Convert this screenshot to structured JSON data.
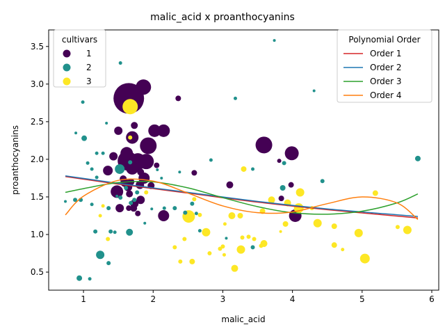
{
  "chart_data": {
    "type": "scatter",
    "title": "malic_acid x proanthocyanins",
    "xlabel": "malic_acid",
    "ylabel": "proanthocyanins",
    "xlim": [
      0.5,
      6.1
    ],
    "ylim": [
      0.26,
      3.72
    ],
    "xticks": [
      1,
      2,
      3,
      4,
      5,
      6
    ],
    "yticks": [
      0.5,
      1.0,
      1.5,
      2.0,
      2.5,
      3.0,
      3.5
    ],
    "grid": false,
    "legend_cultivars": {
      "title": "cultivars",
      "position": "upper-left",
      "entries": [
        {
          "label": "1",
          "color": "#440154"
        },
        {
          "label": "2",
          "color": "#21918c"
        },
        {
          "label": "3",
          "color": "#fde725"
        }
      ]
    },
    "legend_poly": {
      "title": "Polynomial Order",
      "position": "upper-right",
      "entries": [
        {
          "label": "Order 1",
          "color": "#d62728"
        },
        {
          "label": "Order 2",
          "color": "#1f77b4"
        },
        {
          "label": "Order 3",
          "color": "#2ca02c"
        },
        {
          "label": "Order 4",
          "color": "#ff7f0e"
        }
      ]
    },
    "series": [
      {
        "cultivar": "1",
        "color": "#440154",
        "points": [
          {
            "x": 1.65,
            "y": 2.81,
            "s": 22
          },
          {
            "x": 1.86,
            "y": 2.96,
            "s": 11
          },
          {
            "x": 1.93,
            "y": 2.18,
            "s": 12
          },
          {
            "x": 2.02,
            "y": 2.38,
            "s": 9
          },
          {
            "x": 2.15,
            "y": 2.38,
            "s": 9
          },
          {
            "x": 1.7,
            "y": 2.29,
            "s": 9
          },
          {
            "x": 1.73,
            "y": 2.45,
            "s": 5
          },
          {
            "x": 1.5,
            "y": 2.38,
            "s": 6
          },
          {
            "x": 2.36,
            "y": 2.81,
            "s": 4
          },
          {
            "x": 3.59,
            "y": 2.19,
            "s": 12
          },
          {
            "x": 3.99,
            "y": 2.08,
            "s": 10
          },
          {
            "x": 1.62,
            "y": 2.08,
            "s": 9
          },
          {
            "x": 1.63,
            "y": 1.98,
            "s": 14
          },
          {
            "x": 1.78,
            "y": 1.97,
            "s": 12
          },
          {
            "x": 1.9,
            "y": 1.97,
            "s": 11
          },
          {
            "x": 1.7,
            "y": 1.88,
            "s": 9
          },
          {
            "x": 1.35,
            "y": 1.85,
            "s": 7
          },
          {
            "x": 1.43,
            "y": 2.04,
            "s": 6
          },
          {
            "x": 1.82,
            "y": 1.83,
            "s": 5
          },
          {
            "x": 2.05,
            "y": 1.92,
            "s": 4
          },
          {
            "x": 1.48,
            "y": 1.57,
            "s": 9
          },
          {
            "x": 1.64,
            "y": 1.63,
            "s": 6
          },
          {
            "x": 1.87,
            "y": 1.75,
            "s": 8
          },
          {
            "x": 1.81,
            "y": 1.66,
            "s": 6
          },
          {
            "x": 1.59,
            "y": 1.69,
            "s": 6
          },
          {
            "x": 1.66,
            "y": 1.54,
            "s": 5
          },
          {
            "x": 1.73,
            "y": 1.41,
            "s": 6
          },
          {
            "x": 1.52,
            "y": 1.35,
            "s": 6
          },
          {
            "x": 1.82,
            "y": 1.46,
            "s": 6
          },
          {
            "x": 1.72,
            "y": 1.35,
            "s": 5
          },
          {
            "x": 1.65,
            "y": 1.35,
            "s": 4
          },
          {
            "x": 1.78,
            "y": 1.28,
            "s": 4
          },
          {
            "x": 2.15,
            "y": 1.25,
            "s": 8
          },
          {
            "x": 2.59,
            "y": 1.82,
            "s": 4
          },
          {
            "x": 3.1,
            "y": 1.66,
            "s": 5
          },
          {
            "x": 4.04,
            "y": 1.25,
            "s": 9
          },
          {
            "x": 3.84,
            "y": 1.48,
            "s": 4
          },
          {
            "x": 3.98,
            "y": 1.66,
            "s": 4
          },
          {
            "x": 3.81,
            "y": 1.98,
            "s": 3
          },
          {
            "x": 1.97,
            "y": 1.65,
            "s": 5
          },
          {
            "x": 1.57,
            "y": 1.74,
            "s": 5
          },
          {
            "x": 1.68,
            "y": 1.7,
            "s": 5
          }
        ]
      },
      {
        "cultivar": "2",
        "color": "#21918c",
        "points": [
          {
            "x": 1.52,
            "y": 1.87,
            "s": 7
          },
          {
            "x": 1.24,
            "y": 0.73,
            "s": 6
          },
          {
            "x": 1.66,
            "y": 1.03,
            "s": 5
          },
          {
            "x": 0.94,
            "y": 0.42,
            "s": 4
          },
          {
            "x": 1.01,
            "y": 2.28,
            "s": 4
          },
          {
            "x": 0.99,
            "y": 2.76,
            "s": 2.5
          },
          {
            "x": 1.53,
            "y": 3.28,
            "s": 2.5
          },
          {
            "x": 3.18,
            "y": 2.81,
            "s": 2.5
          },
          {
            "x": 3.74,
            "y": 3.58,
            "s": 2
          },
          {
            "x": 4.31,
            "y": 2.91,
            "s": 2
          },
          {
            "x": 5.8,
            "y": 2.01,
            "s": 4
          },
          {
            "x": 4.43,
            "y": 1.71,
            "s": 3
          },
          {
            "x": 3.86,
            "y": 1.62,
            "s": 4
          },
          {
            "x": 3.88,
            "y": 1.95,
            "s": 3
          },
          {
            "x": 2.83,
            "y": 1.99,
            "s": 2.5
          },
          {
            "x": 3.43,
            "y": 1.87,
            "s": 2.5
          },
          {
            "x": 1.19,
            "y": 2.08,
            "s": 2.5
          },
          {
            "x": 1.28,
            "y": 2.08,
            "s": 2.5
          },
          {
            "x": 1.12,
            "y": 1.87,
            "s": 2.5
          },
          {
            "x": 1.06,
            "y": 1.95,
            "s": 2.5
          },
          {
            "x": 1.67,
            "y": 1.96,
            "s": 3
          },
          {
            "x": 1.19,
            "y": 1.76,
            "s": 2.5
          },
          {
            "x": 1.36,
            "y": 1.35,
            "s": 3
          },
          {
            "x": 1.36,
            "y": 0.62,
            "s": 3
          },
          {
            "x": 1.09,
            "y": 0.41,
            "s": 2.5
          },
          {
            "x": 1.17,
            "y": 1.04,
            "s": 3
          },
          {
            "x": 1.39,
            "y": 1.04,
            "s": 3
          },
          {
            "x": 1.45,
            "y": 1.03,
            "s": 2.5
          },
          {
            "x": 1.12,
            "y": 1.4,
            "s": 2.5
          },
          {
            "x": 0.96,
            "y": 1.46,
            "s": 3
          },
          {
            "x": 0.88,
            "y": 1.46,
            "s": 3
          },
          {
            "x": 1.61,
            "y": 1.62,
            "s": 3
          },
          {
            "x": 1.77,
            "y": 1.56,
            "s": 3
          },
          {
            "x": 1.73,
            "y": 1.46,
            "s": 3
          },
          {
            "x": 1.68,
            "y": 1.42,
            "s": 3
          },
          {
            "x": 1.53,
            "y": 1.49,
            "s": 3
          },
          {
            "x": 2.31,
            "y": 1.35,
            "s": 3
          },
          {
            "x": 2.46,
            "y": 1.29,
            "s": 3
          },
          {
            "x": 2.56,
            "y": 1.41,
            "s": 3
          },
          {
            "x": 2.62,
            "y": 1.28,
            "s": 2.5
          },
          {
            "x": 3.43,
            "y": 0.83,
            "s": 3
          },
          {
            "x": 2.67,
            "y": 1.05,
            "s": 2.5
          },
          {
            "x": 3.05,
            "y": 0.95,
            "s": 2
          },
          {
            "x": 1.88,
            "y": 1.15,
            "s": 2
          },
          {
            "x": 2.12,
            "y": 1.75,
            "s": 2
          },
          {
            "x": 2.38,
            "y": 1.83,
            "s": 2
          },
          {
            "x": 0.74,
            "y": 1.44,
            "s": 2
          },
          {
            "x": 1.48,
            "y": 1.51,
            "s": 2
          },
          {
            "x": 2.16,
            "y": 1.35,
            "s": 2.5
          },
          {
            "x": 1.33,
            "y": 2.48,
            "s": 2
          },
          {
            "x": 0.89,
            "y": 2.35,
            "s": 2
          },
          {
            "x": 1.98,
            "y": 1.34,
            "s": 2
          },
          {
            "x": 2.06,
            "y": 1.86,
            "s": 2
          }
        ]
      },
      {
        "cultivar": "3",
        "color": "#fde725",
        "points": [
          {
            "x": 1.67,
            "y": 2.7,
            "s": 11
          },
          {
            "x": 2.51,
            "y": 1.24,
            "s": 9
          },
          {
            "x": 5.04,
            "y": 0.68,
            "s": 7
          },
          {
            "x": 4.09,
            "y": 1.35,
            "s": 7
          },
          {
            "x": 4.11,
            "y": 1.56,
            "s": 6
          },
          {
            "x": 4.36,
            "y": 1.15,
            "s": 6
          },
          {
            "x": 5.65,
            "y": 1.06,
            "s": 6
          },
          {
            "x": 4.95,
            "y": 1.02,
            "s": 6
          },
          {
            "x": 2.76,
            "y": 1.03,
            "s": 6
          },
          {
            "x": 3.26,
            "y": 0.8,
            "s": 6
          },
          {
            "x": 3.17,
            "y": 0.55,
            "s": 5
          },
          {
            "x": 3.59,
            "y": 0.88,
            "s": 5
          },
          {
            "x": 3.13,
            "y": 1.25,
            "s": 5
          },
          {
            "x": 3.25,
            "y": 1.25,
            "s": 4
          },
          {
            "x": 3.57,
            "y": 1.31,
            "s": 4
          },
          {
            "x": 3.7,
            "y": 1.46,
            "s": 5
          },
          {
            "x": 3.93,
            "y": 1.42,
            "s": 5
          },
          {
            "x": 3.9,
            "y": 1.14,
            "s": 4
          },
          {
            "x": 4.6,
            "y": 1.11,
            "s": 4
          },
          {
            "x": 4.6,
            "y": 0.86,
            "s": 4
          },
          {
            "x": 5.19,
            "y": 1.55,
            "s": 4
          },
          {
            "x": 5.51,
            "y": 1.1,
            "s": 3
          },
          {
            "x": 4.72,
            "y": 0.8,
            "s": 2.5
          },
          {
            "x": 3.3,
            "y": 1.87,
            "s": 4
          },
          {
            "x": 2.56,
            "y": 0.64,
            "s": 4
          },
          {
            "x": 2.39,
            "y": 0.64,
            "s": 3
          },
          {
            "x": 2.31,
            "y": 0.83,
            "s": 3
          },
          {
            "x": 2.45,
            "y": 0.94,
            "s": 3
          },
          {
            "x": 2.67,
            "y": 1.26,
            "s": 3
          },
          {
            "x": 2.81,
            "y": 0.75,
            "s": 3
          },
          {
            "x": 2.96,
            "y": 0.81,
            "s": 3
          },
          {
            "x": 3.0,
            "y": 0.84,
            "s": 3
          },
          {
            "x": 3.02,
            "y": 0.73,
            "s": 2.5
          },
          {
            "x": 3.03,
            "y": 1.14,
            "s": 2.5
          },
          {
            "x": 3.28,
            "y": 0.96,
            "s": 3
          },
          {
            "x": 3.37,
            "y": 0.97,
            "s": 3
          },
          {
            "x": 3.45,
            "y": 0.94,
            "s": 3
          },
          {
            "x": 3.55,
            "y": 0.85,
            "s": 3
          },
          {
            "x": 3.83,
            "y": 1.04,
            "s": 2
          },
          {
            "x": 4.28,
            "y": 1.35,
            "s": 3
          },
          {
            "x": 2.59,
            "y": 1.47,
            "s": 3
          },
          {
            "x": 1.9,
            "y": 1.56,
            "s": 3
          },
          {
            "x": 1.35,
            "y": 0.94,
            "s": 3
          },
          {
            "x": 1.24,
            "y": 1.25,
            "s": 2.5
          },
          {
            "x": 1.28,
            "y": 1.38,
            "s": 2.5
          },
          {
            "x": 1.67,
            "y": 2.29,
            "s": 3
          }
        ]
      }
    ],
    "fits": [
      {
        "name": "Order 1",
        "color": "#d62728",
        "x": [
          0.74,
          1.5,
          2.5,
          3.5,
          4.5,
          5.8
        ],
        "y": [
          1.77,
          1.67,
          1.55,
          1.43,
          1.33,
          1.22
        ]
      },
      {
        "name": "Order 2",
        "color": "#1f77b4",
        "x": [
          0.74,
          1.5,
          2.5,
          3.5,
          4.5,
          5.8
        ],
        "y": [
          1.78,
          1.68,
          1.56,
          1.44,
          1.34,
          1.24
        ]
      },
      {
        "name": "Order 3",
        "color": "#2ca02c",
        "x": [
          0.74,
          1.0,
          1.5,
          2.0,
          2.5,
          3.0,
          3.5,
          4.0,
          4.5,
          5.0,
          5.5,
          5.8
        ],
        "y": [
          1.56,
          1.61,
          1.69,
          1.7,
          1.62,
          1.49,
          1.37,
          1.29,
          1.27,
          1.31,
          1.42,
          1.54
        ]
      },
      {
        "name": "Order 4",
        "color": "#ff7f0e",
        "x": [
          0.74,
          1.0,
          1.5,
          2.0,
          2.5,
          3.0,
          3.5,
          4.0,
          4.5,
          5.0,
          5.5,
          5.8
        ],
        "y": [
          1.26,
          1.51,
          1.72,
          1.71,
          1.55,
          1.38,
          1.29,
          1.3,
          1.41,
          1.5,
          1.42,
          1.2
        ]
      }
    ]
  }
}
